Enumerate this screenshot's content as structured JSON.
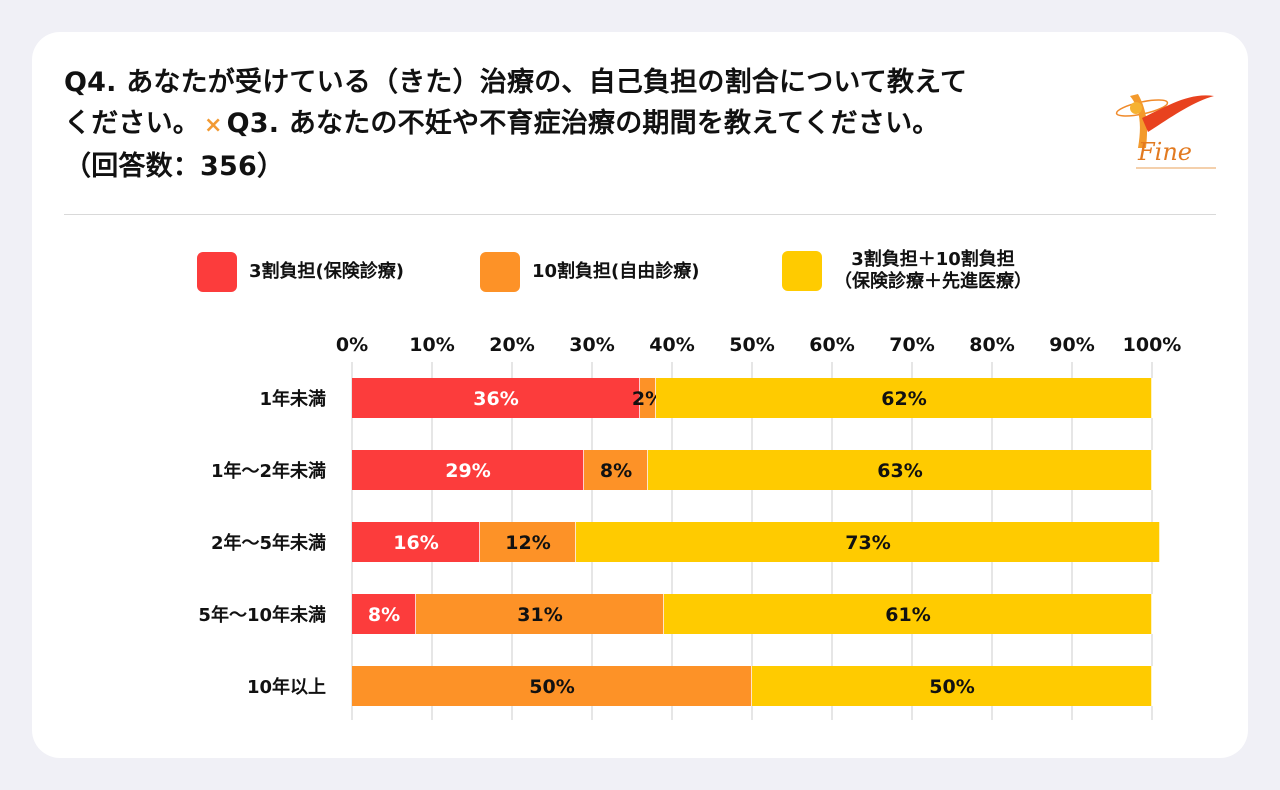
{
  "title": {
    "line1": "Q4. あなたが受けている（きた）治療の、自己負担の割合について教えて",
    "line2_a": "ください。",
    "line2_cross": "×",
    "line2_b": "Q3. あなたの不妊や不育症治療の期間を教えてください。",
    "line3": "（回答数：356）"
  },
  "logo": {
    "text": "Fine"
  },
  "colors": {
    "red": "#fc3c3c",
    "orange": "#fd9227",
    "yellow": "#ffcb00",
    "grid": "#cccccc",
    "cross": "#f29a33"
  },
  "legend": [
    {
      "label": "3割負担(保険診療)",
      "color_key": "red"
    },
    {
      "label": "10割負担(自由診療)",
      "color_key": "orange"
    },
    {
      "label_lines": [
        "3割負担＋10割負担",
        "（保険診療＋先進医療）"
      ],
      "color_key": "yellow"
    }
  ],
  "chart_data": {
    "type": "bar",
    "orientation": "horizontal",
    "stacked": true,
    "categories": [
      "1年未満",
      "1年〜2年未満",
      "2年〜5年未満",
      "5年〜10年未満",
      "10年以上"
    ],
    "series": [
      {
        "name": "3割負担(保険診療)",
        "color_key": "red",
        "values": [
          36,
          29,
          16,
          8,
          0
        ],
        "labels": [
          "36%",
          "29%",
          "16%",
          "8%",
          ""
        ]
      },
      {
        "name": "10割負担(自由診療)",
        "color_key": "orange",
        "values": [
          2,
          8,
          12,
          31,
          50
        ],
        "labels": [
          "2%",
          "8%",
          "12%",
          "31%",
          "50%"
        ]
      },
      {
        "name": "3割負担＋10割負担（保険診療＋先進医療）",
        "color_key": "yellow",
        "values": [
          62,
          63,
          73,
          61,
          50
        ],
        "labels": [
          "62%",
          "63%",
          "73%",
          "61%",
          "50%"
        ]
      }
    ],
    "x_ticks": [
      "0%",
      "10%",
      "20%",
      "30%",
      "40%",
      "50%",
      "60%",
      "70%",
      "80%",
      "90%",
      "100%"
    ],
    "xlim": [
      0,
      100
    ],
    "grid": true,
    "legend_position": "top"
  }
}
